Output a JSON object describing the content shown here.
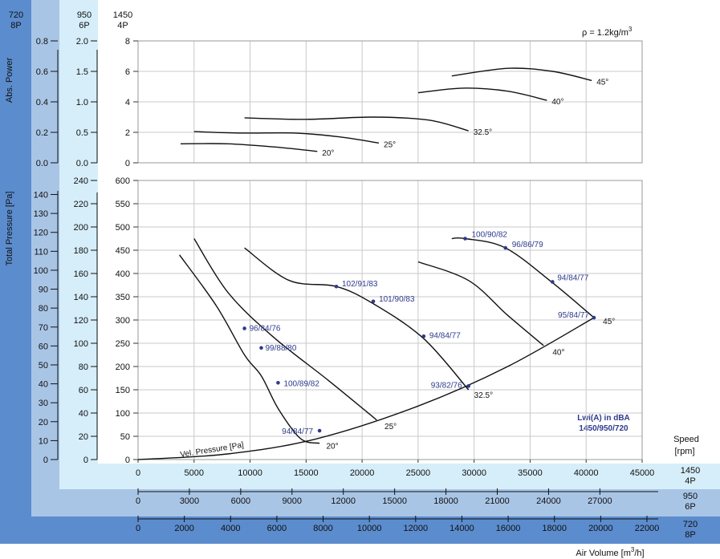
{
  "header": {
    "speed_cols": [
      {
        "rpm": "720",
        "poles": "8P"
      },
      {
        "rpm": "950",
        "poles": "6P"
      },
      {
        "rpm": "1450",
        "poles": "4P"
      }
    ],
    "density": "ρ = 1.2kg/m",
    "density_sup": "3"
  },
  "axes": {
    "power_label": "Abs. Power",
    "pressure_label": "Total Pressure [Pa]",
    "speed_label": "Speed",
    "speed_unit": "[rpm]",
    "airflow_label": "Air Volume [m",
    "airflow_sup": "3",
    "airflow_end": "/h]"
  },
  "legend": {
    "line1": "Lwi(A) in dBA",
    "line2": "1450/950/720"
  },
  "velocity_label": "Vel. Pressure [Pa]",
  "colors": {
    "dark_band": "#5b8ccd",
    "mid_band": "#a9c5e6",
    "light_band": "#d6eefa",
    "series": "#111111",
    "annotation": "#2e3a8c"
  },
  "chart_data": [
    {
      "type": "line",
      "title": "Abs. Power",
      "ylabel": "Abs. Power",
      "xlabel": "Air Volume [m³/h]",
      "ylim": [
        0,
        8
      ],
      "xlim": [
        0,
        45000
      ],
      "y_ticks_1450": [
        "0",
        "2",
        "4",
        "6",
        "8"
      ],
      "y_ticks_950": [
        "0.0",
        "0.5",
        "1.0",
        "1.5",
        "2.0"
      ],
      "y_ticks_720": [
        "0.0",
        "0.2",
        "0.4",
        "0.6",
        "0.8"
      ],
      "series": [
        {
          "name": "20°",
          "x": [
            3800,
            8000,
            12000,
            16000
          ],
          "y": [
            1.25,
            1.25,
            1.05,
            0.75
          ]
        },
        {
          "name": "25°",
          "x": [
            5000,
            9000,
            14000,
            18000,
            21500
          ],
          "y": [
            2.05,
            1.95,
            1.95,
            1.7,
            1.3
          ]
        },
        {
          "name": "32.5°",
          "x": [
            9500,
            15000,
            21000,
            26000,
            29500
          ],
          "y": [
            2.95,
            2.85,
            3.0,
            2.8,
            2.1
          ]
        },
        {
          "name": "40°",
          "x": [
            25000,
            29000,
            33000,
            36500
          ],
          "y": [
            4.6,
            4.9,
            4.7,
            4.1
          ]
        },
        {
          "name": "45°",
          "x": [
            28000,
            33000,
            37000,
            40500
          ],
          "y": [
            5.7,
            6.2,
            6.0,
            5.4
          ]
        }
      ]
    },
    {
      "type": "line",
      "title": "Total Pressure",
      "ylabel": "Total Pressure [Pa]",
      "xlabel": "Air Volume [m³/h]",
      "ylim": [
        0,
        600
      ],
      "xlim": [
        0,
        45000
      ],
      "y_ticks_1450": [
        "0",
        "50",
        "100",
        "150",
        "200",
        "250",
        "300",
        "350",
        "400",
        "450",
        "500",
        "550",
        "600"
      ],
      "y_ticks_950": [
        "0",
        "20",
        "40",
        "60",
        "80",
        "100",
        "120",
        "140",
        "160",
        "180",
        "200",
        "220",
        "240"
      ],
      "y_ticks_720": [
        "0",
        "10",
        "20",
        "30",
        "40",
        "50",
        "60",
        "70",
        "80",
        "90",
        "100",
        "110",
        "120",
        "130",
        "140"
      ],
      "x_ticks_1450": [
        "0",
        "5000",
        "10000",
        "15000",
        "20000",
        "25000",
        "30000",
        "35000",
        "40000",
        "45000"
      ],
      "x_ticks_950": [
        "0",
        "3000",
        "6000",
        "9000",
        "12000",
        "15000",
        "18000",
        "21000",
        "24000",
        "27000"
      ],
      "x_ticks_720": [
        "0",
        "2000",
        "4000",
        "6000",
        "8000",
        "10000",
        "12000",
        "14000",
        "16000",
        "18000",
        "20000",
        "22000"
      ],
      "series": [
        {
          "name": "20°",
          "x": [
            3700,
            7000,
            9500,
            11000,
            12500,
            14500,
            16200
          ],
          "y": [
            440,
            330,
            225,
            180,
            110,
            45,
            35
          ]
        },
        {
          "name": "25°",
          "x": [
            5000,
            8000,
            12000,
            17000,
            21300
          ],
          "y": [
            475,
            360,
            265,
            170,
            85
          ]
        },
        {
          "name": "32.5°",
          "x": [
            9500,
            13500,
            17700,
            21000,
            25500,
            29500
          ],
          "y": [
            455,
            385,
            372,
            335,
            260,
            150
          ]
        },
        {
          "name": "40°",
          "x": [
            25000,
            29500,
            33000,
            36200
          ],
          "y": [
            425,
            385,
            310,
            245
          ]
        },
        {
          "name": "45°",
          "x": [
            28000,
            29200,
            32800,
            37000,
            40700
          ],
          "y": [
            475,
            475,
            455,
            380,
            305
          ]
        },
        {
          "name": "Vel. Pressure [Pa]",
          "x": [
            0,
            8000,
            16000,
            25000,
            33000,
            40700
          ],
          "y": [
            0,
            12,
            45,
            115,
            200,
            305
          ]
        }
      ],
      "points": [
        {
          "label": "100/90/82",
          "x": 29200,
          "y": 475
        },
        {
          "label": "96/86/79",
          "x": 32800,
          "y": 455
        },
        {
          "label": "94/84/77",
          "x": 37000,
          "y": 382
        },
        {
          "label": "95/84/77",
          "x": 40700,
          "y": 305
        },
        {
          "label": "102/91/83",
          "x": 17700,
          "y": 372
        },
        {
          "label": "101/90/83",
          "x": 21000,
          "y": 340
        },
        {
          "label": "94/84/77",
          "x": 25500,
          "y": 265
        },
        {
          "label": "93/82/76",
          "x": 29500,
          "y": 158
        },
        {
          "label": "96/84/76",
          "x": 9500,
          "y": 282
        },
        {
          "label": "99/88/80",
          "x": 11000,
          "y": 240
        },
        {
          "label": "100/89/82",
          "x": 12500,
          "y": 165
        },
        {
          "label": "94/84/77",
          "x": 16200,
          "y": 62
        }
      ],
      "curve_labels": [
        {
          "label": "20°",
          "x": 16800,
          "y": 30
        },
        {
          "label": "25°",
          "x": 22000,
          "y": 72
        },
        {
          "label": "32.5°",
          "x": 30000,
          "y": 140
        },
        {
          "label": "40°",
          "x": 37000,
          "y": 232
        },
        {
          "label": "45°",
          "x": 41500,
          "y": 298
        }
      ]
    }
  ]
}
